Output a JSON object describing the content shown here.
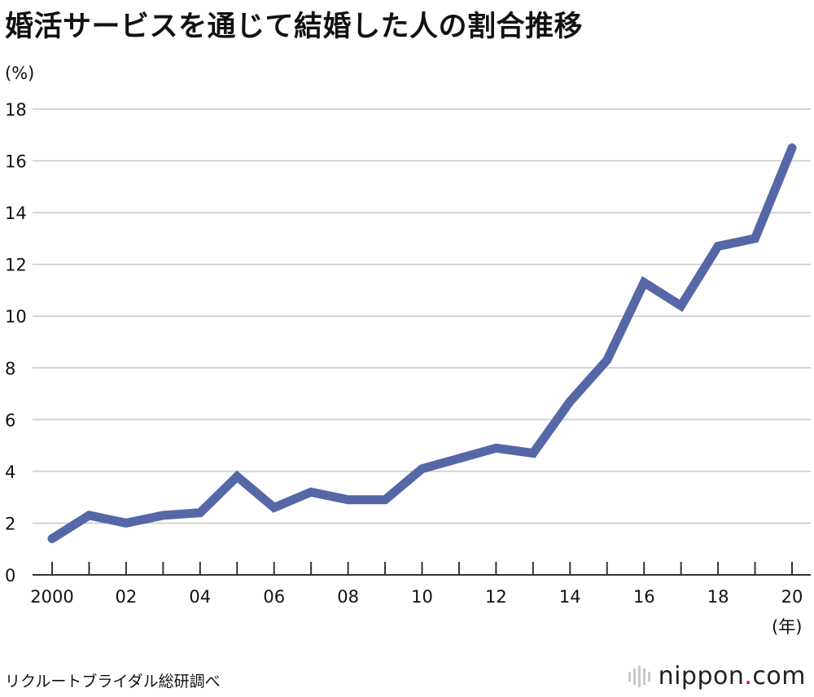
{
  "title": "婚活サービスを通じて結婚した人の割合推移",
  "source": "リクルートブライダル総研調べ",
  "logo": {
    "name": "nippon",
    "dot": ".",
    "suffix": "com"
  },
  "chart_data": {
    "type": "line",
    "title": "婚活サービスを通じて結婚した人の割合推移",
    "ylabel": "(%)",
    "xlabel": "(年)",
    "ylim": [
      0,
      18
    ],
    "yticks": [
      0,
      2,
      4,
      6,
      8,
      10,
      12,
      14,
      16,
      18
    ],
    "x": [
      2000,
      2001,
      2002,
      2003,
      2004,
      2005,
      2006,
      2007,
      2008,
      2009,
      2010,
      2011,
      2012,
      2013,
      2014,
      2015,
      2016,
      2017,
      2018,
      2019,
      2020
    ],
    "xtick_labels": [
      {
        "x": 2000,
        "label": "2000"
      },
      {
        "x": 2002,
        "label": "02"
      },
      {
        "x": 2004,
        "label": "04"
      },
      {
        "x": 2006,
        "label": "06"
      },
      {
        "x": 2008,
        "label": "08"
      },
      {
        "x": 2010,
        "label": "10"
      },
      {
        "x": 2012,
        "label": "12"
      },
      {
        "x": 2014,
        "label": "14"
      },
      {
        "x": 2016,
        "label": "16"
      },
      {
        "x": 2018,
        "label": "18"
      },
      {
        "x": 2020,
        "label": "20"
      }
    ],
    "series": [
      {
        "values": [
          1.4,
          2.3,
          2.0,
          2.3,
          2.4,
          3.8,
          2.6,
          3.2,
          2.9,
          2.9,
          4.1,
          4.5,
          4.9,
          4.7,
          6.7,
          8.3,
          11.3,
          10.4,
          12.7,
          13.0,
          16.5
        ],
        "color": "#5667a8"
      }
    ],
    "grid": true,
    "legend": "none"
  }
}
